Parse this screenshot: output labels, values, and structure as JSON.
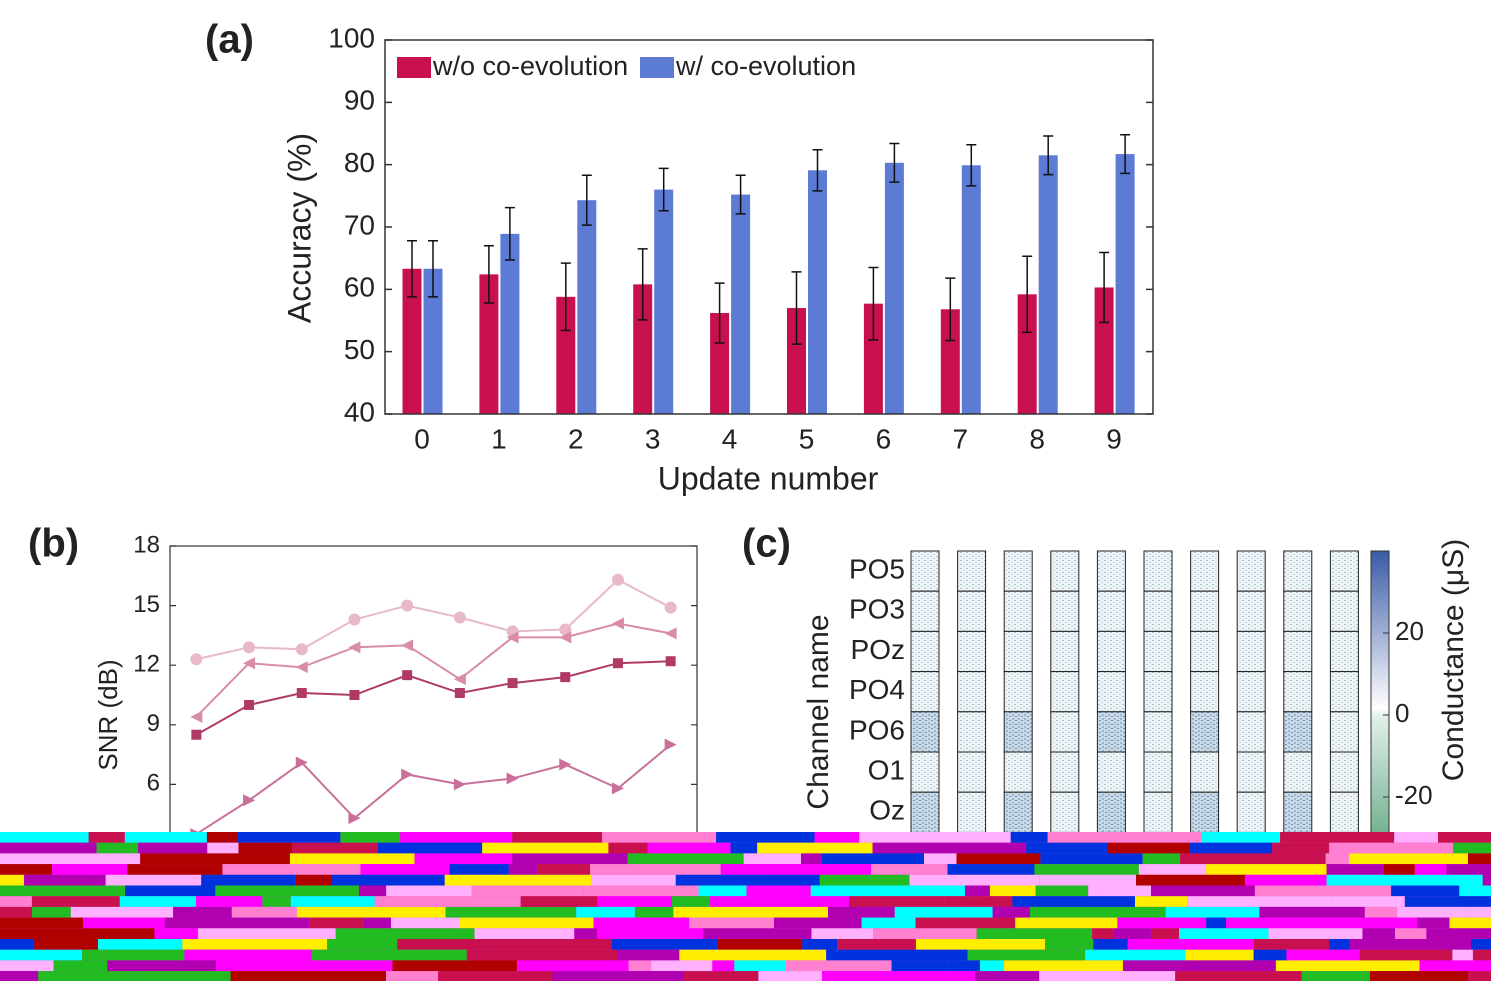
{
  "chart_data": [
    {
      "type": "bar",
      "label": "(a)",
      "xlabel": "Update number",
      "ylabel": "Accuracy (%)",
      "categories": [
        "0",
        "1",
        "2",
        "3",
        "4",
        "5",
        "6",
        "7",
        "8",
        "9"
      ],
      "series": [
        {
          "name": "w/o co-evolution",
          "color": "#c8104f",
          "values": [
            63.3,
            62.4,
            58.8,
            60.8,
            56.2,
            57.0,
            57.7,
            56.8,
            59.2,
            60.3
          ],
          "errors": [
            4.5,
            4.6,
            5.4,
            5.7,
            4.8,
            5.8,
            5.8,
            5.0,
            6.1,
            5.6
          ]
        },
        {
          "name": "w/  co-evolution",
          "color": "#5b7bd5",
          "values": [
            63.3,
            68.9,
            74.3,
            76.0,
            75.2,
            79.1,
            80.3,
            79.9,
            81.5,
            81.7
          ],
          "errors": [
            4.5,
            4.2,
            4.0,
            3.4,
            3.1,
            3.3,
            3.1,
            3.3,
            3.1,
            3.1
          ]
        }
      ],
      "ylim": [
        40,
        100
      ],
      "yticks": [
        40,
        50,
        60,
        70,
        80,
        90,
        100
      ],
      "legend": "upper left"
    },
    {
      "type": "line",
      "label": "(b)",
      "ylabel": "SNR (dB)",
      "x": [
        0,
        1,
        2,
        3,
        4,
        5,
        6,
        7,
        8,
        9
      ],
      "xlim": [
        -0.5,
        9.5
      ],
      "ylim": [
        3,
        18
      ],
      "yticks": [
        6,
        9,
        12,
        15,
        18
      ],
      "series": [
        {
          "color": "#e8b9c8",
          "marker": "circle",
          "values": [
            12.3,
            12.9,
            12.8,
            14.3,
            15.0,
            14.4,
            13.7,
            13.8,
            16.3,
            14.9
          ]
        },
        {
          "color": "#d98ca5",
          "marker": "triangle-left",
          "values": [
            9.4,
            12.1,
            11.9,
            12.9,
            13.0,
            11.3,
            13.4,
            13.4,
            14.1,
            13.6
          ]
        },
        {
          "color": "#b03a66",
          "marker": "square",
          "values": [
            8.5,
            10.0,
            10.6,
            10.5,
            11.5,
            10.6,
            11.1,
            11.4,
            12.1,
            12.2
          ]
        },
        {
          "color": "#c8709a",
          "marker": "triangle-right",
          "values": [
            3.5,
            5.2,
            7.1,
            4.3,
            6.5,
            6.0,
            6.3,
            7.0,
            5.8,
            8.0
          ]
        }
      ]
    },
    {
      "type": "heatmap",
      "label": "(c)",
      "ylabel": "Channel name",
      "rows": [
        "PO5",
        "PO3",
        "POz",
        "PO4",
        "PO6",
        "O1",
        "Oz"
      ],
      "clim": [
        -30,
        40
      ],
      "cticks": [
        -20,
        0,
        20
      ],
      "clabel": "Conductance (μS)"
    }
  ]
}
